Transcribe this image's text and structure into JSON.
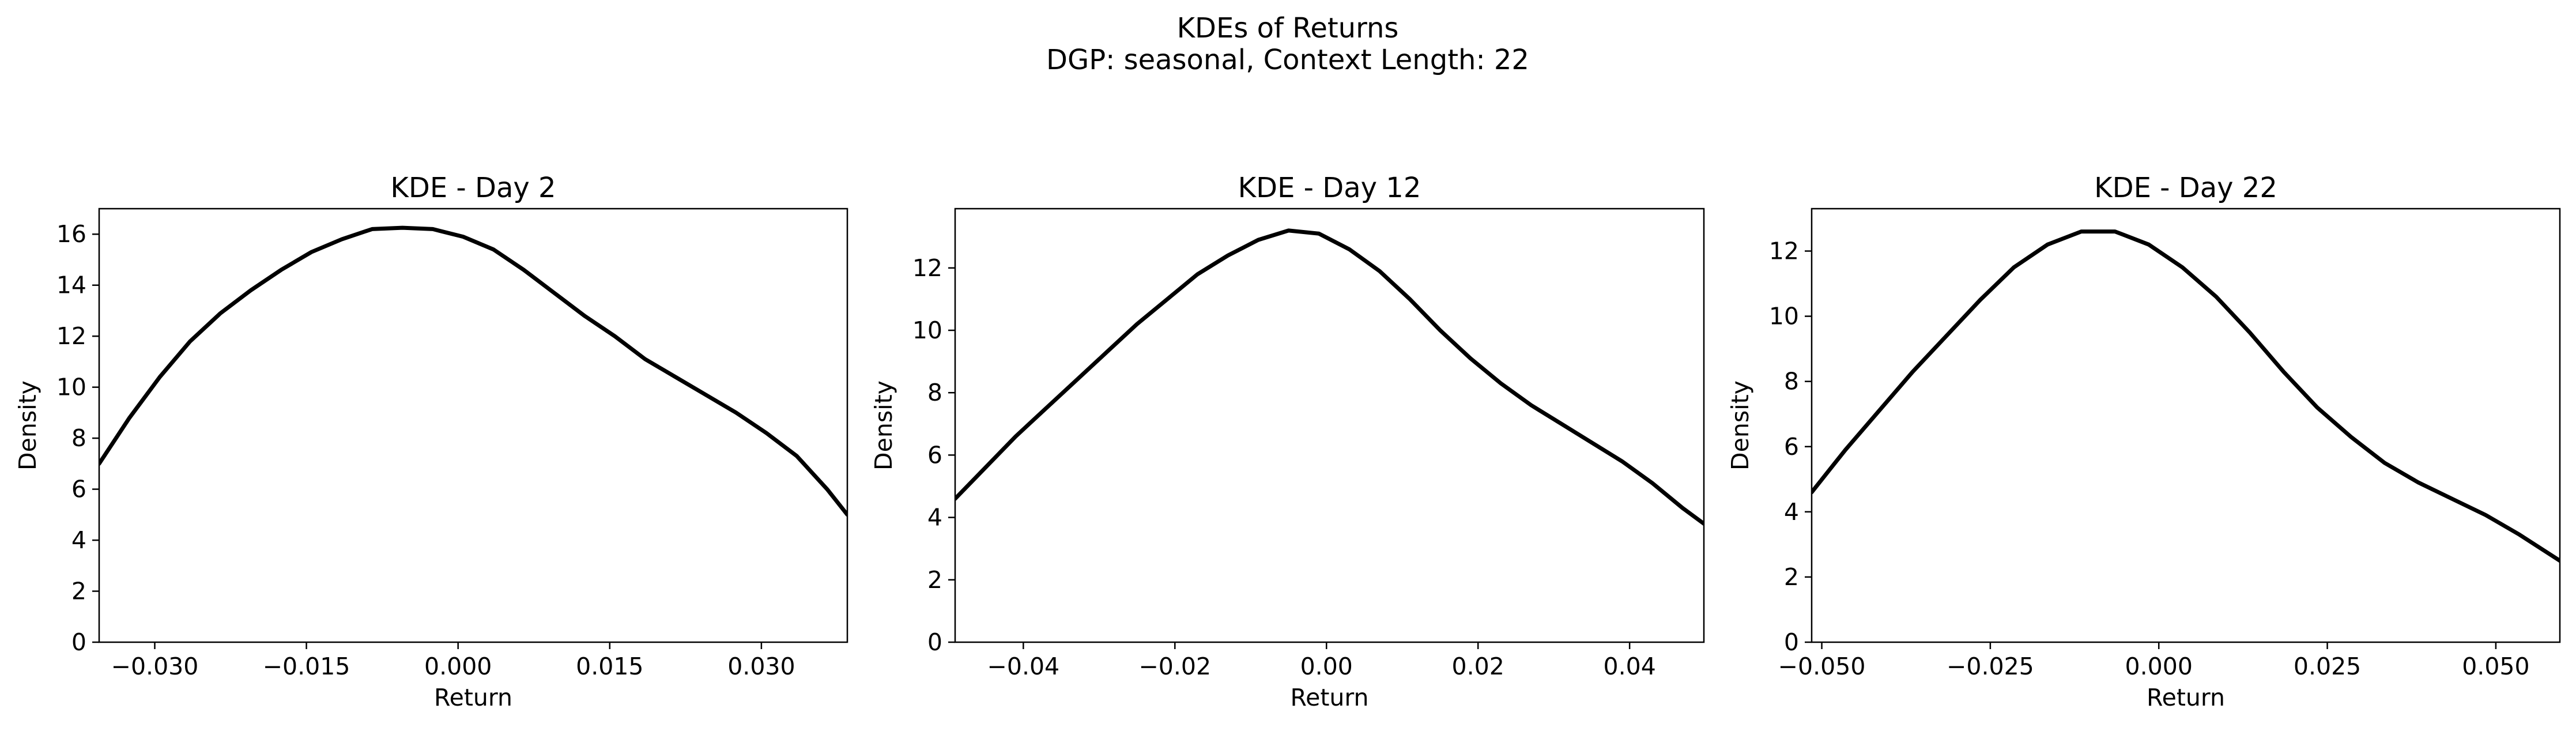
{
  "figure": {
    "title_line1": "KDEs of Returns",
    "title_line2": "DGP: seasonal, Context Length: 22"
  },
  "chart_data": [
    {
      "type": "line",
      "title": "KDE - Day 2",
      "xlabel": "Return",
      "ylabel": "Density",
      "xlim": [
        -0.0355,
        0.0385
      ],
      "ylim": [
        0,
        17
      ],
      "xticks": [
        -0.03,
        -0.015,
        0.0,
        0.015,
        0.03
      ],
      "xtick_labels": [
        "−0.030",
        "−0.015",
        "0.000",
        "0.015",
        "0.030"
      ],
      "yticks": [
        0,
        2,
        4,
        6,
        8,
        10,
        12,
        14,
        16
      ],
      "ytick_labels": [
        "0",
        "2",
        "4",
        "6",
        "8",
        "10",
        "12",
        "14",
        "16"
      ],
      "color": "#000000",
      "series": [
        {
          "x": [
            -0.0355,
            -0.0325,
            -0.0295,
            -0.0265,
            -0.0235,
            -0.0205,
            -0.0175,
            -0.0145,
            -0.0115,
            -0.0085,
            -0.0055,
            -0.0025,
            0.0005,
            0.0035,
            0.0065,
            0.0095,
            0.0125,
            0.0155,
            0.0185,
            0.0215,
            0.0245,
            0.0275,
            0.0305,
            0.0335,
            0.0365,
            0.0385
          ],
          "y": [
            7.0,
            8.8,
            10.4,
            11.8,
            12.9,
            13.8,
            14.6,
            15.3,
            15.8,
            16.2,
            16.25,
            16.2,
            15.9,
            15.4,
            14.6,
            13.7,
            12.8,
            12.0,
            11.1,
            10.4,
            9.7,
            9.0,
            8.2,
            7.3,
            6.0,
            5.0
          ]
        }
      ]
    },
    {
      "type": "line",
      "title": "KDE - Day 12",
      "xlabel": "Return",
      "ylabel": "Density",
      "xlim": [
        -0.049,
        0.0498
      ],
      "ylim": [
        0,
        13.9
      ],
      "xticks": [
        -0.04,
        -0.02,
        0.0,
        0.02,
        0.04
      ],
      "xtick_labels": [
        "−0.04",
        "−0.02",
        "0.00",
        "0.02",
        "0.04"
      ],
      "yticks": [
        0,
        2,
        4,
        6,
        8,
        10,
        12
      ],
      "ytick_labels": [
        "0",
        "2",
        "4",
        "6",
        "8",
        "10",
        "12"
      ],
      "color": "#000000",
      "series": [
        {
          "x": [
            -0.049,
            -0.045,
            -0.041,
            -0.037,
            -0.033,
            -0.029,
            -0.025,
            -0.021,
            -0.017,
            -0.013,
            -0.009,
            -0.005,
            -0.001,
            0.003,
            0.007,
            0.011,
            0.015,
            0.019,
            0.023,
            0.027,
            0.031,
            0.035,
            0.039,
            0.043,
            0.047,
            0.0498
          ],
          "y": [
            4.6,
            5.6,
            6.6,
            7.5,
            8.4,
            9.3,
            10.2,
            11.0,
            11.8,
            12.4,
            12.9,
            13.2,
            13.1,
            12.6,
            11.9,
            11.0,
            10.0,
            9.1,
            8.3,
            7.6,
            7.0,
            6.4,
            5.8,
            5.1,
            4.3,
            3.8
          ]
        }
      ]
    },
    {
      "type": "line",
      "title": "KDE - Day 22",
      "xlabel": "Return",
      "ylabel": "Density",
      "xlim": [
        -0.0515,
        0.0595
      ],
      "ylim": [
        0,
        13.3
      ],
      "xticks": [
        -0.05,
        -0.025,
        0.0,
        0.025,
        0.05
      ],
      "xtick_labels": [
        "−0.050",
        "−0.025",
        "0.000",
        "0.025",
        "0.050"
      ],
      "yticks": [
        0,
        2,
        4,
        6,
        8,
        10,
        12
      ],
      "ytick_labels": [
        "0",
        "2",
        "4",
        "6",
        "8",
        "10",
        "12"
      ],
      "color": "#000000",
      "series": [
        {
          "x": [
            -0.0515,
            -0.0465,
            -0.0415,
            -0.0365,
            -0.0315,
            -0.0265,
            -0.0215,
            -0.0165,
            -0.0115,
            -0.0065,
            -0.0015,
            0.0035,
            0.0085,
            0.0135,
            0.0185,
            0.0235,
            0.0285,
            0.0335,
            0.0385,
            0.0435,
            0.0485,
            0.0535,
            0.0595
          ],
          "y": [
            4.6,
            5.9,
            7.1,
            8.3,
            9.4,
            10.5,
            11.5,
            12.2,
            12.6,
            12.6,
            12.2,
            11.5,
            10.6,
            9.5,
            8.3,
            7.2,
            6.3,
            5.5,
            4.9,
            4.4,
            3.9,
            3.3,
            2.5
          ]
        }
      ]
    }
  ]
}
